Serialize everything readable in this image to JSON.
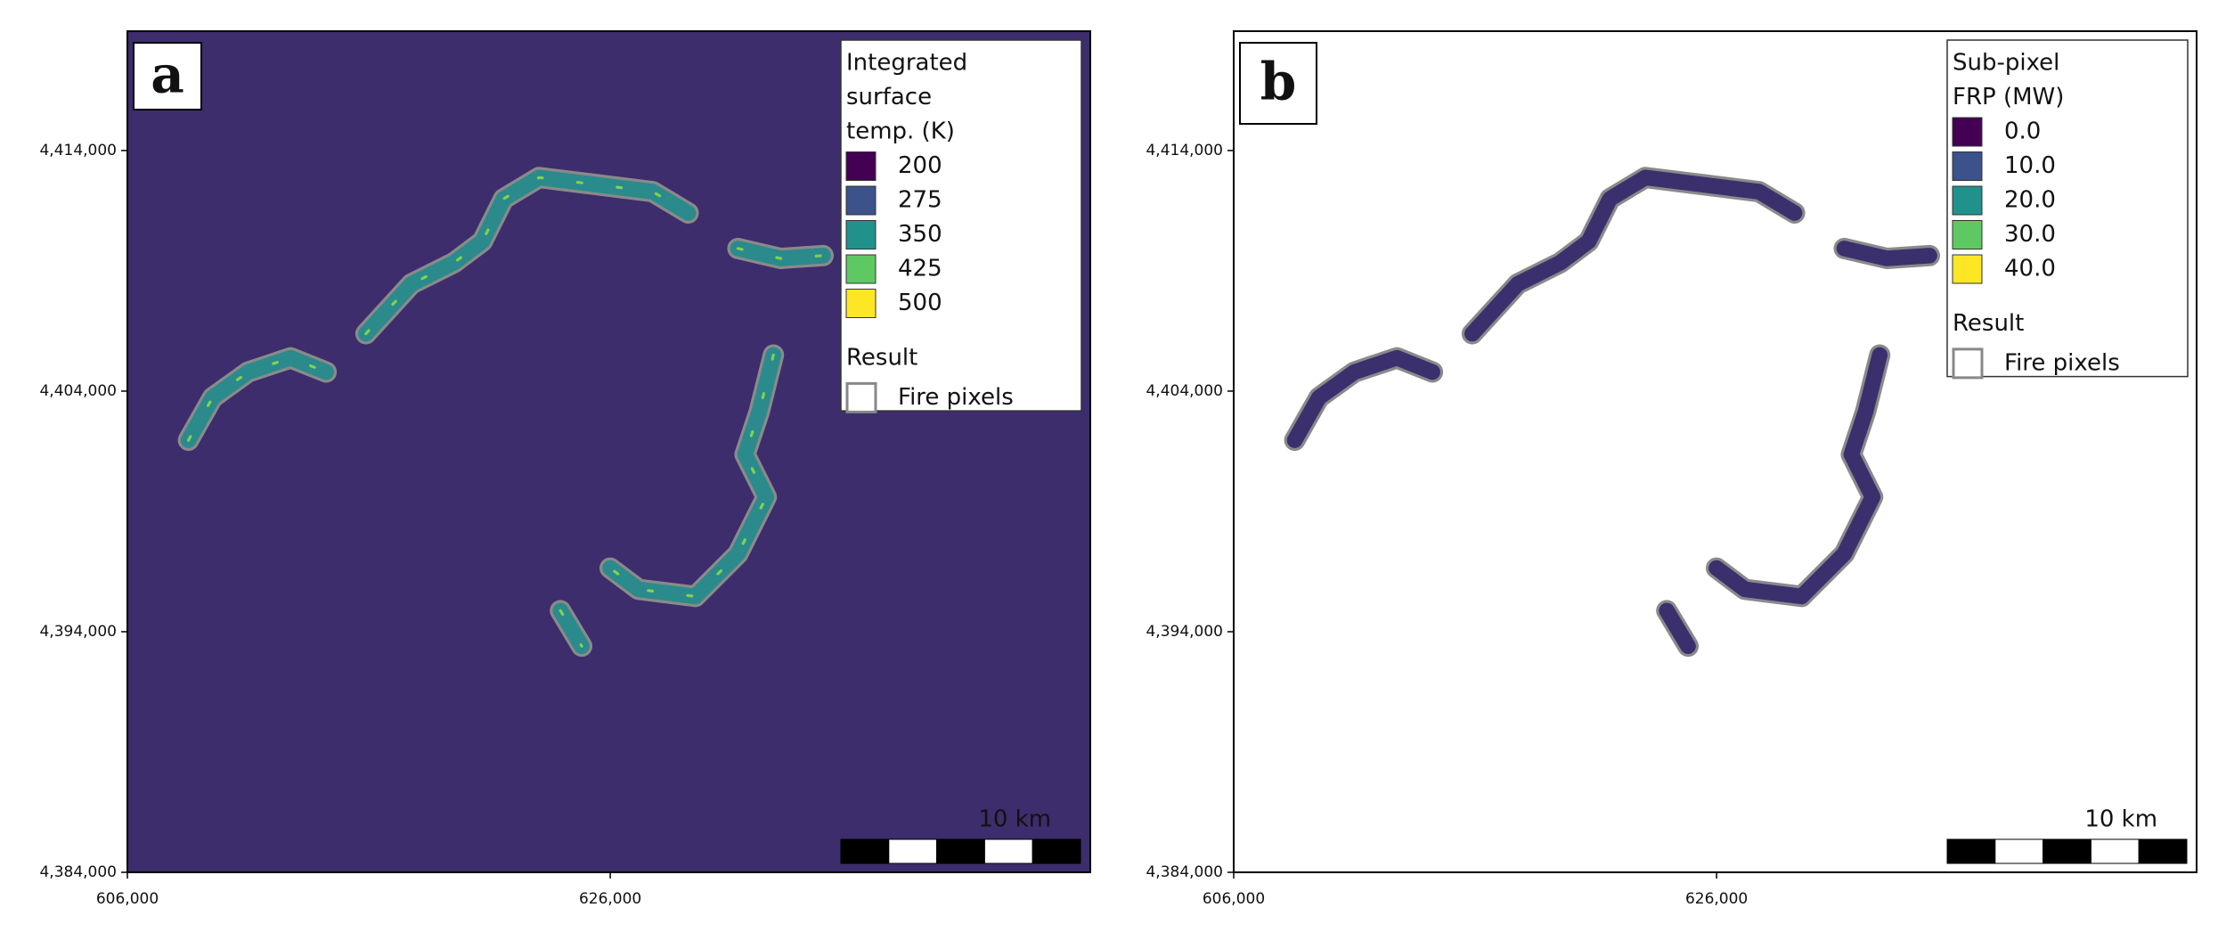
{
  "chart_data": [
    {
      "type": "raster-map",
      "panel_label": "a",
      "xlim": [
        606000,
        645882
      ],
      "ylim": [
        4384000,
        4418960
      ],
      "xticks": [
        {
          "value": 606000,
          "label": "606,000"
        },
        {
          "value": 626000,
          "label": "626,000"
        }
      ],
      "yticks": [
        {
          "value": 4384000,
          "label": "4,384,000"
        },
        {
          "value": 4394000,
          "label": "4,394,000"
        },
        {
          "value": 4404000,
          "label": "4,404,000"
        },
        {
          "value": 4414000,
          "label": "4,414,000"
        }
      ],
      "background": "#3d2d6c",
      "legend": {
        "title": [
          "Integrated",
          "surface",
          "temp. (K)"
        ],
        "items": [
          {
            "value": 200,
            "color": "#440154"
          },
          {
            "value": 275,
            "color": "#3b528b"
          },
          {
            "value": 350,
            "color": "#21918c"
          },
          {
            "value": 425,
            "color": "#5ec962"
          },
          {
            "value": 500,
            "color": "#fde725"
          }
        ],
        "result_title": "Result",
        "result_item": "Fire pixels"
      },
      "scale_bar": "10 km"
    },
    {
      "type": "raster-map",
      "panel_label": "b",
      "xlim": [
        606000,
        645882
      ],
      "ylim": [
        4384000,
        4418960
      ],
      "xticks": [
        {
          "value": 606000,
          "label": "606,000"
        },
        {
          "value": 626000,
          "label": "626,000"
        }
      ],
      "yticks": [
        {
          "value": 4384000,
          "label": "4,384,000"
        },
        {
          "value": 4394000,
          "label": "4,394,000"
        },
        {
          "value": 4404000,
          "label": "4,404,000"
        },
        {
          "value": 4414000,
          "label": "4,414,000"
        }
      ],
      "background": "#ffffff",
      "legend": {
        "title": [
          "Sub-pixel",
          "FRP (MW)"
        ],
        "items": [
          {
            "value": 0,
            "label": "0.0",
            "color": "#440154"
          },
          {
            "value": 10,
            "label": "10.0",
            "color": "#3b528b"
          },
          {
            "value": 20,
            "label": "20.0",
            "color": "#21918c"
          },
          {
            "value": 30,
            "label": "30.0",
            "color": "#5ec962"
          },
          {
            "value": 40,
            "label": "40.0",
            "color": "#fde725"
          }
        ],
        "result_title": "Result",
        "result_item": "Fire pixels"
      },
      "scale_bar": "10 km"
    }
  ]
}
